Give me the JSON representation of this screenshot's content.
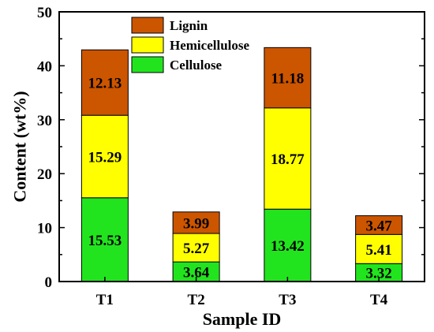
{
  "chart_data": {
    "type": "bar",
    "stacked": true,
    "categories": [
      "T1",
      "T2",
      "T3",
      "T4"
    ],
    "series": [
      {
        "name": "Cellulose",
        "values": [
          15.53,
          3.64,
          13.42,
          3.32
        ],
        "color": "#22e41e"
      },
      {
        "name": "Hemicellulose",
        "values": [
          15.29,
          5.27,
          18.77,
          5.41
        ],
        "color": "#ffff00"
      },
      {
        "name": "Lignin",
        "values": [
          12.13,
          3.99,
          11.18,
          3.47
        ],
        "color": "#cc5500"
      }
    ],
    "legend_order": [
      "Lignin",
      "Hemicellulose",
      "Cellulose"
    ],
    "xlabel": "Sample ID",
    "ylabel": "Content (wt%)",
    "ylim": [
      0,
      50
    ],
    "yticks": [
      0,
      10,
      20,
      30,
      40,
      50
    ],
    "grid": false,
    "legend_position": "top-left"
  }
}
